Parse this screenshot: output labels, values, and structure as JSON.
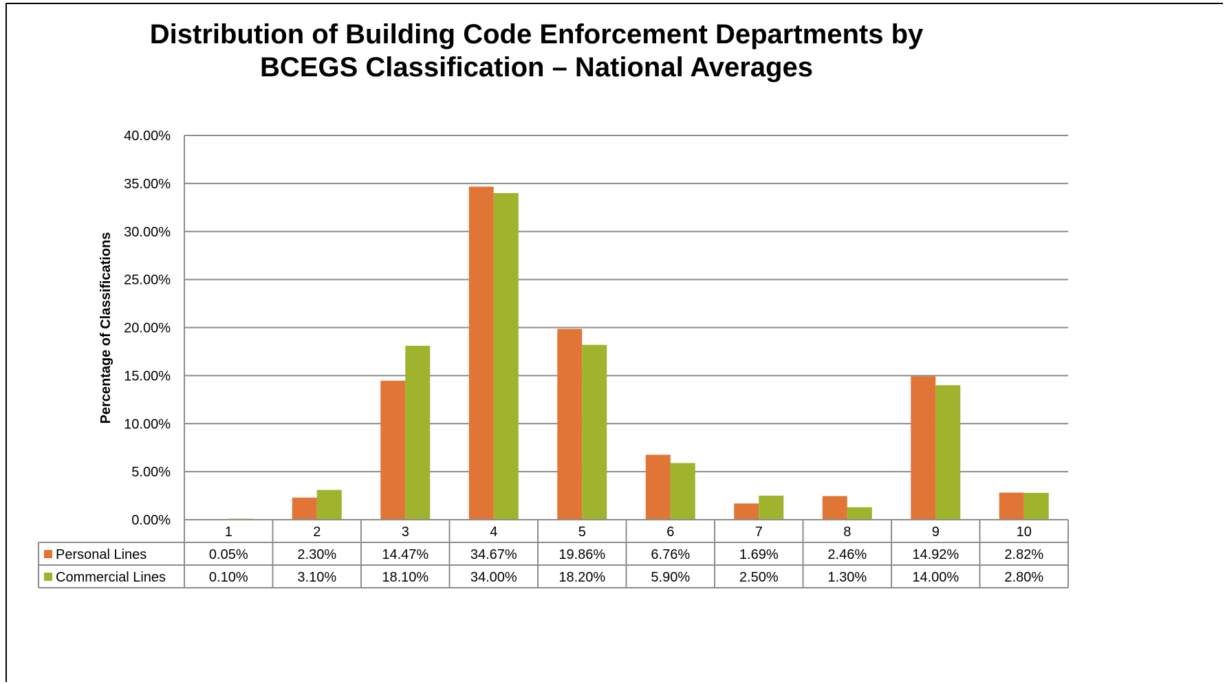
{
  "chart_data": {
    "type": "bar",
    "title": "Distribution of Building Code Enforcement Departments by\nBCEGS Classification – National Averages",
    "xlabel": "",
    "ylabel": "Percentage of Classifications",
    "ylim": [
      0,
      40
    ],
    "y_ticks": [
      "0.00%",
      "5.00%",
      "10.00%",
      "15.00%",
      "20.00%",
      "25.00%",
      "30.00%",
      "35.00%",
      "40.00%"
    ],
    "grid": true,
    "legend": "data-table",
    "categories": [
      "1",
      "2",
      "3",
      "4",
      "5",
      "6",
      "7",
      "8",
      "9",
      "10"
    ],
    "series": [
      {
        "name": "Personal Lines",
        "color": "#E07536",
        "values": [
          0.05,
          2.3,
          14.47,
          34.67,
          19.86,
          6.76,
          1.69,
          2.46,
          14.92,
          2.82
        ],
        "labels": [
          "0.05%",
          "2.30%",
          "14.47%",
          "34.67%",
          "19.86%",
          "6.76%",
          "1.69%",
          "2.46%",
          "14.92%",
          "2.82%"
        ]
      },
      {
        "name": "Commercial Lines",
        "color": "#9FB32C",
        "values": [
          0.1,
          3.1,
          18.1,
          34.0,
          18.2,
          5.9,
          2.5,
          1.3,
          14.0,
          2.8
        ],
        "labels": [
          "0.10%",
          "3.10%",
          "18.10%",
          "34.00%",
          "18.20%",
          "5.90%",
          "2.50%",
          "1.30%",
          "14.00%",
          "2.80%"
        ]
      }
    ]
  }
}
